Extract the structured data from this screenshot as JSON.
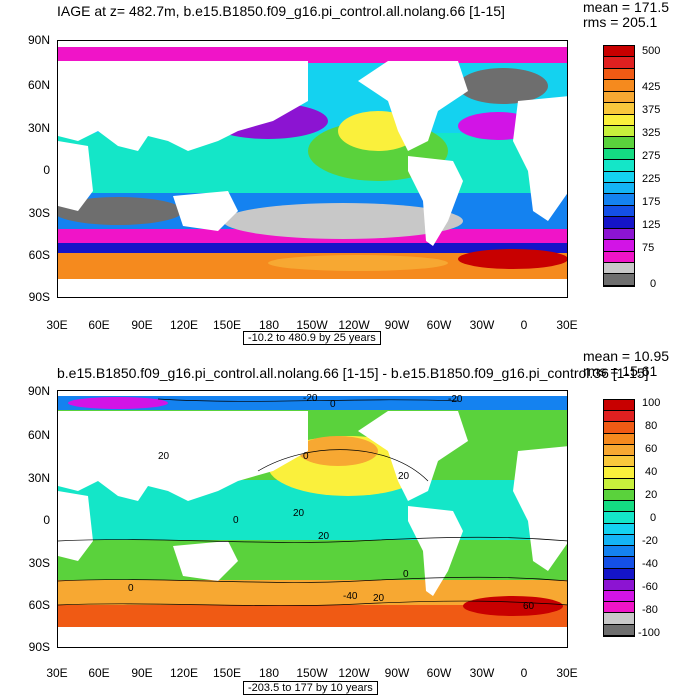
{
  "panels": [
    {
      "title": "IAGE at z= 482.7m, b.e15.B1850.f09_g16.pi_control.all.nolang.66 [1-15]",
      "mean": "mean = 171.5",
      "rms": "rms = 205.1",
      "range_note": "-10.2 to 480.9 by 25 years",
      "colorbar": {
        "labels": [
          "500",
          "425",
          "375",
          "325",
          "275",
          "225",
          "175",
          "125",
          "75",
          "0"
        ],
        "colors": [
          "#c80000",
          "#e02020",
          "#f05a14",
          "#f58a1e",
          "#f7a832",
          "#f9c83c",
          "#faf03c",
          "#c8f03c",
          "#5ad23c",
          "#14dc82",
          "#14e6c8",
          "#14d2f0",
          "#14b4f5",
          "#1482f0",
          "#1450e6",
          "#1414c8",
          "#8c14d2",
          "#d214e6",
          "#f014c8",
          "#c8c8c8",
          "#6e6e6e"
        ]
      }
    },
    {
      "title": "b.e15.B1850.f09_g16.pi_control.all.nolang.66 [1-15] - b.e15.B1850.f09_g16.pi_control.36 [1-15]",
      "mean": "mean = 10.95",
      "rms": "rms = 15.61",
      "range_note": "-203.5 to 177 by 10 years",
      "contour_labels": [
        "-20",
        "0",
        "-20",
        "20",
        "20",
        "0",
        "20",
        "20",
        "0",
        "0",
        "-40",
        "20",
        "60",
        "0"
      ],
      "colorbar": {
        "labels": [
          "100",
          "80",
          "60",
          "40",
          "20",
          "0",
          "-20",
          "-40",
          "-60",
          "-80",
          "-100"
        ],
        "colors": [
          "#c80000",
          "#e02020",
          "#f05a14",
          "#f58a1e",
          "#f7a832",
          "#f9c83c",
          "#faf03c",
          "#c8f03c",
          "#5ad23c",
          "#14dc82",
          "#14e6c8",
          "#14d2f0",
          "#14b4f5",
          "#1482f0",
          "#1450e6",
          "#1414c8",
          "#8c14d2",
          "#d214e6",
          "#f014c8",
          "#c8c8c8",
          "#6e6e6e"
        ]
      }
    }
  ],
  "yticks": [
    "90N",
    "60N",
    "30N",
    "0",
    "30S",
    "60S",
    "90S"
  ],
  "xticks": [
    "30E",
    "60E",
    "90E",
    "120E",
    "150E",
    "180",
    "150W",
    "120W",
    "90W",
    "60W",
    "30W",
    "0",
    "30E"
  ]
}
